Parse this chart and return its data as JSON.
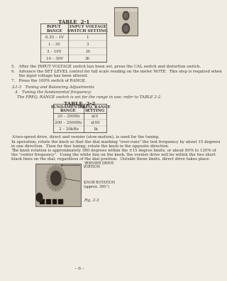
{
  "bg_color": "#f0ece4",
  "text_color": "#3a3530",
  "title": "TABLE  2-1",
  "table1_headers": [
    "INPUT\nRANGE",
    "INPUT VOLTAGE\nSWITCH SETTING"
  ],
  "table1_rows": [
    [
      "0.35 – 1V",
      "1"
    ],
    [
      "1 – 3V",
      "3"
    ],
    [
      "3 – 10V",
      "10"
    ],
    [
      "10 – 30V",
      "30"
    ]
  ],
  "steps": [
    "5.   After the INPUT VOLTAGE switch has been set, press the CAL switch and distortion switch.",
    "6.   Advance the SET LEVEL control for full scale reading on the meter NOTE:  This step is required when\n      the input voltage has been altered.",
    "7.   Press the 100% switch of RANGE."
  ],
  "section_title": "2.1-3   Tuning and Balancing Adjustments",
  "sub_section": "A.   Tuning the fundamental frequency:",
  "sub_text": "The FREQ. RANGE switch is set for the range in use; refer to TABLE 2-2.",
  "title2": "TABLE  2-2",
  "table2_headers": [
    "FUNDAMENTAL\nRANGE",
    "FREQ. RANGE\nSETTING"
  ],
  "table2_rows": [
    [
      "20 – 200Hz",
      "x10"
    ],
    [
      "200 – 2000Hz",
      "x100"
    ],
    [
      "2 – 20kHz",
      "1k"
    ]
  ],
  "body_text": [
    "A two-speed drive, direct and vernier (slow-motion), is used for the tuning.",
    "In operation, rotate the knob so that the dial marking \"over-runs\" the test frequency by about 15 degrees\nin one direction.  Then for fine tuning, rotate the knob in the opposite direction.",
    "The knob rotation is approximately 380 degrees within the ±15 degree limits, or about 80% to 120% of\nthe \"center frequency\".  Using the white line on the knob, the vernier drive will be within the two short\nblack lines on the dial, regardless of the dial position.  Outside these limits, direct drive takes place."
  ],
  "annotation1": "VERNIER DRIVE\nPORTION",
  "annotation2": "KNOB ROTATION\n(approx. 380°)",
  "fig_label": "Fig. 2-3",
  "page_num": "– 6 –"
}
